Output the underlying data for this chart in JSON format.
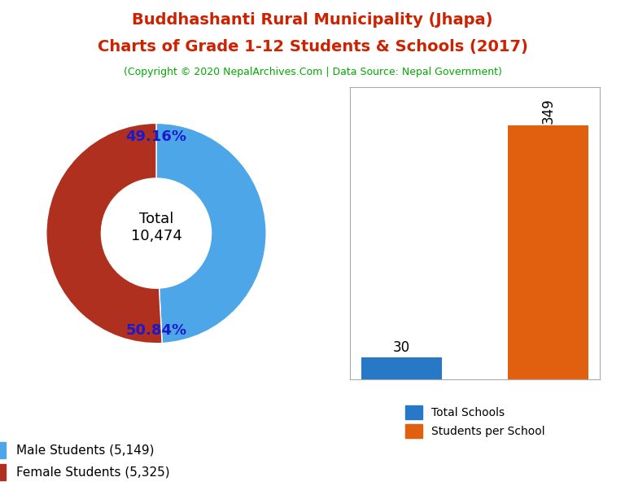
{
  "title_line1": "Buddhashanti Rural Municipality (Jhapa)",
  "title_line2": "Charts of Grade 1-12 Students & Schools (2017)",
  "subtitle": "(Copyright © 2020 NepalArchives.Com | Data Source: Nepal Government)",
  "title_color": "#cc2200",
  "subtitle_color": "#00aa00",
  "donut_values": [
    5149,
    5325
  ],
  "donut_colors": [
    "#4da6e8",
    "#b03020"
  ],
  "donut_labels": [
    "49.16%",
    "50.84%"
  ],
  "donut_center_text": "Total\n10,474",
  "legend_labels": [
    "Male Students (5,149)",
    "Female Students (5,325)"
  ],
  "bar_values": [
    30,
    349
  ],
  "bar_colors": [
    "#2878c8",
    "#e06010"
  ],
  "bar_labels": [
    "Total Schools",
    "Students per School"
  ],
  "bar_annotations": [
    "30",
    "349"
  ],
  "background_color": "#ffffff"
}
